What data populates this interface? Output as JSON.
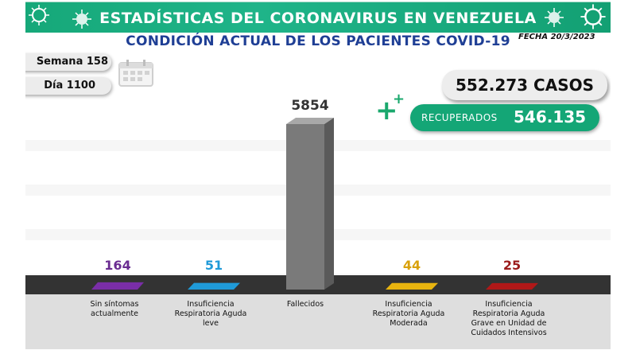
{
  "header": {
    "title": "ESTADÍSTICAS DEL CORONAVIRUS EN VENEZUELA",
    "subtitle": "CONDICIÓN ACTUAL DE LOS PACIENTES COVID-19",
    "fecha": "FECHA 20/3/2023"
  },
  "counters": {
    "semana": "Semana 158",
    "dia": "Día 1100",
    "casos": "552.273 CASOS",
    "recuperados_label": "RECUPERADOS",
    "recuperados_value": "546.135"
  },
  "icons": [
    "virus-icon",
    "calendar-icon",
    "plus-icon"
  ],
  "colors": {
    "banner": "#16a879",
    "subtitle": "#1f3f95",
    "recuperados": "#14a676",
    "plus": "#1aa86d"
  },
  "chart_data": {
    "type": "bar",
    "categories": [
      "Sin síntomas actualmente",
      "Insuficiencia Respiratoria Aguda leve",
      "Fallecidos",
      "Insuficiencia Respiratoria Aguda Moderada",
      "Insuficiencia Respiratoria Aguda Grave en Unidad de Cuidados Intensivos"
    ],
    "label_lines": [
      [
        "Sin síntomas",
        "actualmente"
      ],
      [
        "Insuficiencia",
        "Respiratoria Aguda",
        "leve"
      ],
      [
        "Fallecidos"
      ],
      [
        "Insuficiencia",
        "Respiratoria Aguda",
        "Moderada"
      ],
      [
        "Insuficiencia",
        "Respiratoria Aguda",
        "Grave en Unidad de",
        "Cuidados Intensivos"
      ]
    ],
    "values": [
      164,
      51,
      5854,
      44,
      25
    ],
    "value_labels": [
      "164",
      "51",
      "5854",
      "44",
      "25"
    ],
    "colors": [
      "#7a2ea8",
      "#1f9ad8",
      "#7a7a7a",
      "#e8b40f",
      "#b01818"
    ],
    "label_colors": [
      "#6a2c91",
      "#1f9ad8",
      "#333333",
      "#d9a10a",
      "#9b1b1b"
    ],
    "xlabel": "",
    "ylabel": "",
    "grid": true,
    "legend": "none"
  }
}
